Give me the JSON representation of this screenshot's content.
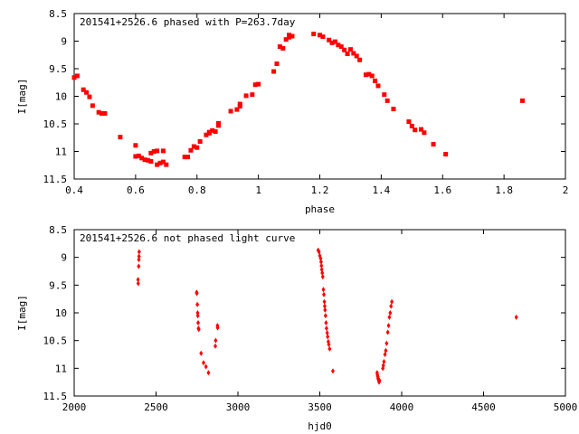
{
  "chart_data": [
    {
      "type": "scatter",
      "title": "201541+2526.6 phased with P=263.7day",
      "xlabel": "phase",
      "ylabel": "I[mag]",
      "xlim": [
        0.4,
        2.0
      ],
      "ylim": [
        11.5,
        8.5
      ],
      "y_inverted": true,
      "xticks": [
        "0.4",
        "0.6",
        "0.8",
        "1",
        "1.2",
        "1.4",
        "1.6",
        "1.8",
        "2"
      ],
      "yticks": [
        "8.5",
        "9",
        "9.5",
        "10",
        "10.5",
        "11",
        "11.5"
      ],
      "grid": false,
      "color": "#ff0000",
      "points": [
        [
          0.4,
          9.66
        ],
        [
          0.41,
          9.63
        ],
        [
          0.43,
          9.88
        ],
        [
          0.44,
          9.93
        ],
        [
          0.45,
          10.01
        ],
        [
          0.46,
          10.17
        ],
        [
          0.48,
          10.29
        ],
        [
          0.49,
          10.31
        ],
        [
          0.5,
          10.31
        ],
        [
          0.55,
          10.74
        ],
        [
          0.6,
          10.89
        ],
        [
          0.6,
          11.09
        ],
        [
          0.61,
          11.08
        ],
        [
          0.62,
          11.12
        ],
        [
          0.63,
          11.15
        ],
        [
          0.64,
          11.16
        ],
        [
          0.65,
          11.18
        ],
        [
          0.65,
          11.03
        ],
        [
          0.66,
          11.0
        ],
        [
          0.67,
          10.99
        ],
        [
          0.67,
          11.24
        ],
        [
          0.68,
          11.21
        ],
        [
          0.69,
          10.99
        ],
        [
          0.69,
          11.19
        ],
        [
          0.7,
          11.24
        ],
        [
          0.76,
          11.1
        ],
        [
          0.77,
          11.1
        ],
        [
          0.78,
          10.98
        ],
        [
          0.79,
          10.91
        ],
        [
          0.8,
          10.93
        ],
        [
          0.81,
          10.82
        ],
        [
          0.83,
          10.7
        ],
        [
          0.84,
          10.65
        ],
        [
          0.84,
          10.67
        ],
        [
          0.85,
          10.62
        ],
        [
          0.86,
          10.64
        ],
        [
          0.87,
          10.53
        ],
        [
          0.87,
          10.49
        ],
        [
          0.91,
          10.27
        ],
        [
          0.93,
          10.24
        ],
        [
          0.94,
          10.18
        ],
        [
          0.94,
          10.14
        ],
        [
          0.96,
          9.99
        ],
        [
          0.98,
          9.97
        ],
        [
          0.99,
          9.79
        ],
        [
          1.0,
          9.78
        ],
        [
          1.05,
          9.55
        ],
        [
          1.06,
          9.41
        ],
        [
          1.07,
          9.1
        ],
        [
          1.08,
          9.13
        ],
        [
          1.09,
          8.97
        ],
        [
          1.1,
          8.93
        ],
        [
          1.1,
          8.89
        ],
        [
          1.11,
          8.91
        ],
        [
          1.18,
          8.87
        ],
        [
          1.2,
          8.89
        ],
        [
          1.21,
          8.92
        ],
        [
          1.23,
          8.98
        ],
        [
          1.24,
          9.03
        ],
        [
          1.25,
          9.01
        ],
        [
          1.26,
          9.07
        ],
        [
          1.27,
          9.1
        ],
        [
          1.28,
          9.16
        ],
        [
          1.29,
          9.23
        ],
        [
          1.3,
          9.15
        ],
        [
          1.31,
          9.22
        ],
        [
          1.32,
          9.27
        ],
        [
          1.33,
          9.34
        ],
        [
          1.35,
          9.61
        ],
        [
          1.36,
          9.6
        ],
        [
          1.37,
          9.63
        ],
        [
          1.38,
          9.72
        ],
        [
          1.39,
          9.81
        ],
        [
          1.41,
          9.97
        ],
        [
          1.42,
          10.08
        ],
        [
          1.44,
          10.23
        ],
        [
          1.49,
          10.46
        ],
        [
          1.5,
          10.54
        ],
        [
          1.51,
          10.61
        ],
        [
          1.53,
          10.6
        ],
        [
          1.54,
          10.66
        ],
        [
          1.57,
          10.87
        ],
        [
          1.61,
          11.05
        ],
        [
          1.86,
          10.08
        ]
      ]
    },
    {
      "type": "scatter",
      "title": "201541+2526.6 not phased light curve",
      "xlabel": "hjd0",
      "ylabel": "I[mag]",
      "xlim": [
        2000,
        5000
      ],
      "ylim": [
        11.5,
        8.5
      ],
      "y_inverted": true,
      "xticks": [
        "2000",
        "2500",
        "3000",
        "3500",
        "4000",
        "4500",
        "5000"
      ],
      "yticks": [
        "8.5",
        "9",
        "9.5",
        "10",
        "10.5",
        "11",
        "11.5"
      ],
      "grid": false,
      "color": "#ff0000",
      "points": [
        [
          2390,
          9.4
        ],
        [
          2391,
          9.47
        ],
        [
          2394,
          9.16
        ],
        [
          2395,
          9.04
        ],
        [
          2396,
          8.98
        ],
        [
          2397,
          8.9
        ],
        [
          2748,
          9.63
        ],
        [
          2749,
          9.65
        ],
        [
          2752,
          9.85
        ],
        [
          2754,
          10.0
        ],
        [
          2755,
          10.05
        ],
        [
          2757,
          10.18
        ],
        [
          2759,
          10.28
        ],
        [
          2761,
          10.3
        ],
        [
          2775,
          10.73
        ],
        [
          2790,
          10.9
        ],
        [
          2805,
          10.97
        ],
        [
          2820,
          11.08
        ],
        [
          2862,
          10.6
        ],
        [
          2864,
          10.5
        ],
        [
          2875,
          10.23
        ],
        [
          2876,
          10.27
        ],
        [
          3490,
          8.87
        ],
        [
          3495,
          8.9
        ],
        [
          3500,
          8.97
        ],
        [
          3505,
          9.02
        ],
        [
          3508,
          9.08
        ],
        [
          3510,
          9.15
        ],
        [
          3512,
          9.22
        ],
        [
          3515,
          9.28
        ],
        [
          3518,
          9.35
        ],
        [
          3522,
          9.58
        ],
        [
          3525,
          9.67
        ],
        [
          3528,
          9.8
        ],
        [
          3530,
          9.88
        ],
        [
          3532,
          9.95
        ],
        [
          3535,
          10.05
        ],
        [
          3538,
          10.18
        ],
        [
          3541,
          10.28
        ],
        [
          3545,
          10.36
        ],
        [
          3548,
          10.43
        ],
        [
          3552,
          10.52
        ],
        [
          3555,
          10.57
        ],
        [
          3560,
          10.65
        ],
        [
          3580,
          11.05
        ],
        [
          3850,
          11.08
        ],
        [
          3852,
          11.12
        ],
        [
          3854,
          11.15
        ],
        [
          3856,
          11.18
        ],
        [
          3858,
          11.2
        ],
        [
          3860,
          11.22
        ],
        [
          3862,
          11.25
        ],
        [
          3865,
          11.22
        ],
        [
          3885,
          11.0
        ],
        [
          3888,
          10.95
        ],
        [
          3892,
          10.88
        ],
        [
          3898,
          10.75
        ],
        [
          3903,
          10.68
        ],
        [
          3908,
          10.55
        ],
        [
          3915,
          10.35
        ],
        [
          3920,
          10.23
        ],
        [
          3925,
          10.08
        ],
        [
          3930,
          10.0
        ],
        [
          3935,
          9.88
        ],
        [
          3940,
          9.8
        ],
        [
          4700,
          10.08
        ]
      ]
    }
  ]
}
